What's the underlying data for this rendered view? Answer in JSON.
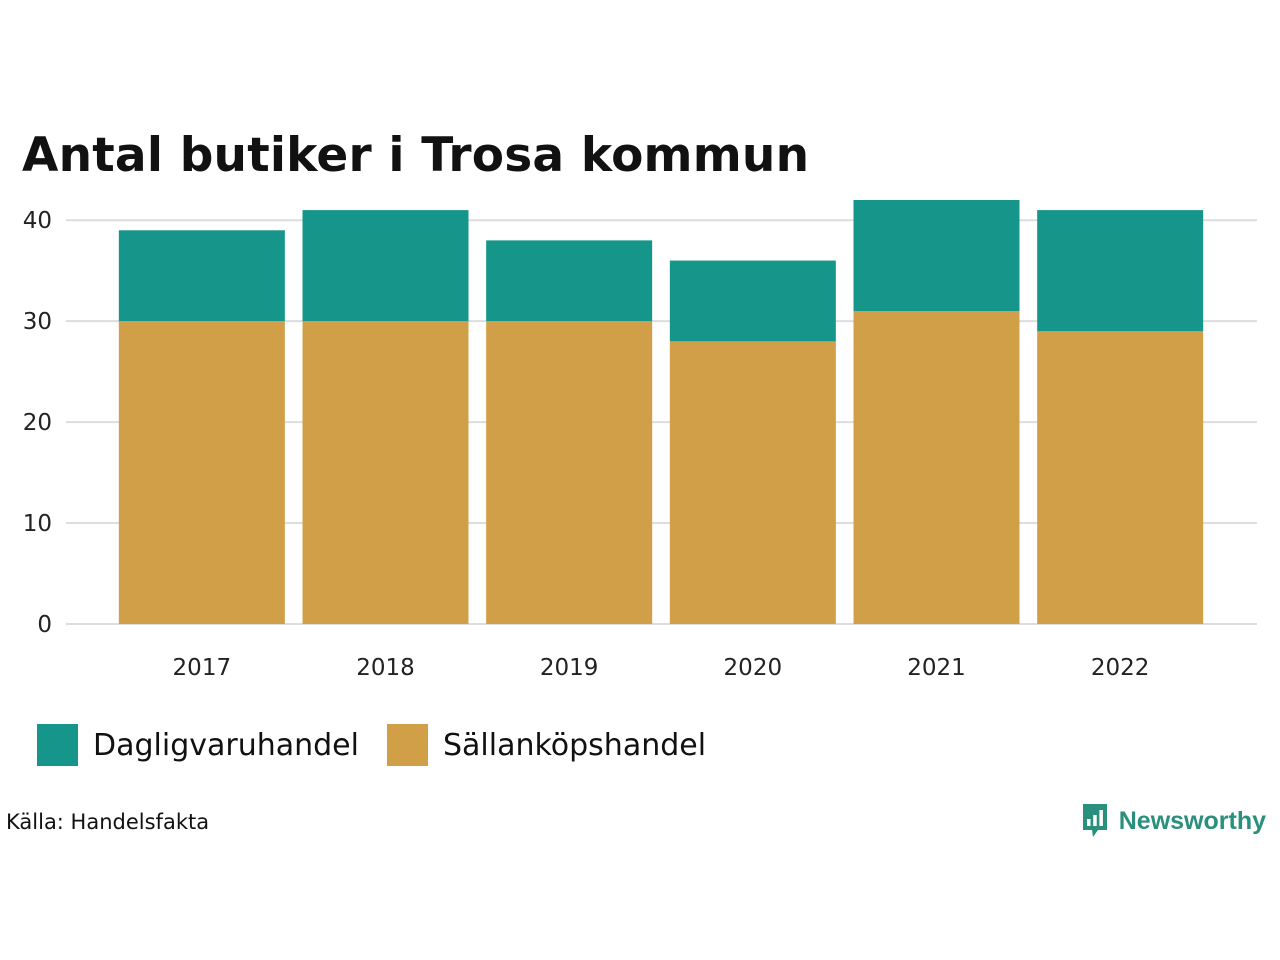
{
  "chart_data": {
    "type": "bar",
    "stacked": true,
    "title": "Antal butiker i Trosa kommun",
    "categories": [
      "2017",
      "2018",
      "2019",
      "2020",
      "2021",
      "2022"
    ],
    "series": [
      {
        "name": "Sällanköpshandel",
        "color": "#d19f48",
        "values": [
          30,
          30,
          30,
          28,
          31,
          29
        ]
      },
      {
        "name": "Dagligvaruhandel",
        "color": "#16968a",
        "values": [
          9,
          11,
          8,
          8,
          11,
          12
        ]
      }
    ],
    "legend_order": [
      "Dagligvaruhandel",
      "Sällanköpshandel"
    ],
    "ylim": [
      0,
      42
    ],
    "yticks": [
      0,
      10,
      20,
      30,
      40
    ],
    "xlabel": "",
    "ylabel": "",
    "grid": true,
    "legend_position": "bottom-left"
  },
  "footer": {
    "source": "Källa: Handelsfakta",
    "brand": "Newsworthy",
    "brand_icon": "newsworthy-logo-icon",
    "brand_color": "#2a8f7c"
  }
}
